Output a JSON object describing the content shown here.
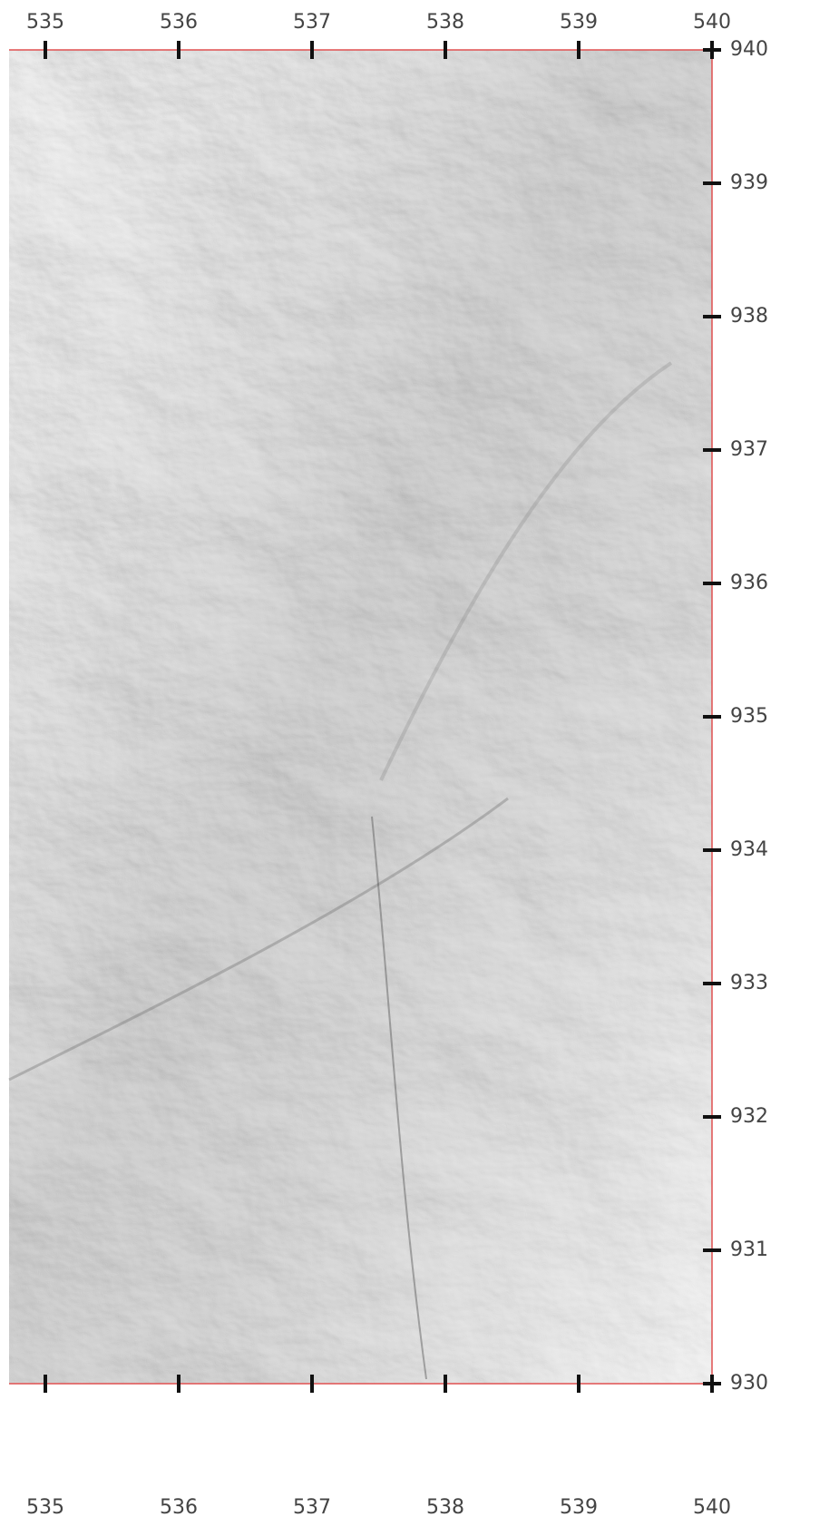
{
  "map": {
    "x_ticks": [
      535,
      536,
      537,
      538,
      539,
      540
    ],
    "y_ticks": [
      940,
      939,
      938,
      937,
      936,
      935,
      934,
      933,
      932,
      931,
      930
    ]
  }
}
